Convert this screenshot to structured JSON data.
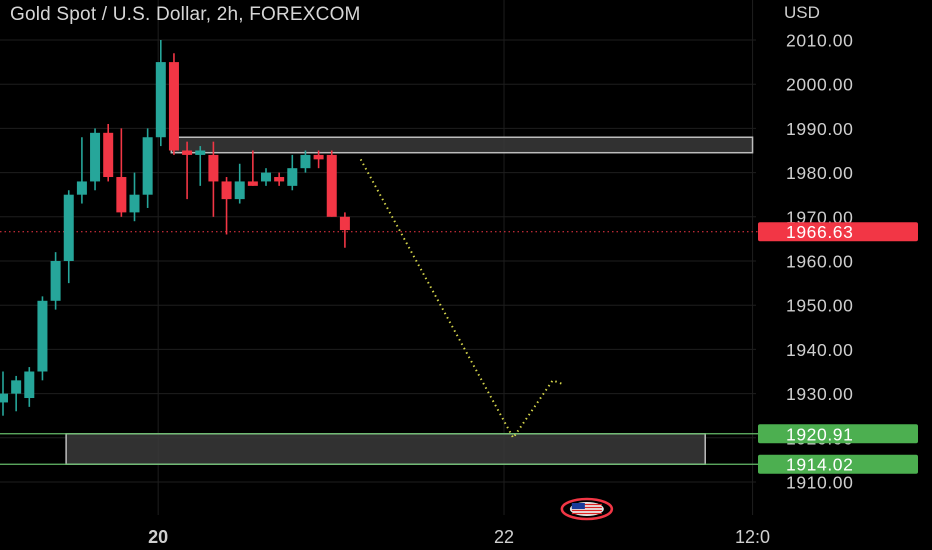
{
  "header": {
    "title": "Gold Spot / U.S. Dollar, 2h, FOREXCOM",
    "currency": "USD"
  },
  "colors": {
    "up": "#26a69a",
    "down": "#f23645",
    "current_price_label": "#f23645",
    "level_label": "#4caf50",
    "level_line": "#66bb6a",
    "zone_fill": "#3a3a3a",
    "zone_stroke": "#bdbdbd",
    "projection": "#d4d44a",
    "grid": "#1e1e1e",
    "text": "#cfcfcf"
  },
  "chart_data": {
    "type": "candlestick",
    "title": "Gold Spot / U.S. Dollar, 2h, FOREXCOM",
    "ylabel": "USD",
    "ylim": [
      1904.0,
      2018.0
    ],
    "y_ticks": [
      1910,
      1920,
      1930,
      1940,
      1950,
      1960,
      1970,
      1980,
      1990,
      2000,
      2010
    ],
    "y_tick_labels": [
      "1910.00",
      "1920.00",
      "1930.00",
      "1940.00",
      "1950.00",
      "1960.00",
      "1970.00",
      "1980.00",
      "1990.00",
      "2000.00",
      "2010.00"
    ],
    "x_ticks": [
      {
        "label": "20",
        "bar": 11.8
      },
      {
        "label": "22",
        "bar": 38.1
      },
      {
        "label": "12:0",
        "bar": 57.0
      }
    ],
    "x_range": [
      -0.3,
      58.5
    ],
    "candles": [
      {
        "o": 1928,
        "h": 1935,
        "l": 1925,
        "c": 1930
      },
      {
        "o": 1930,
        "h": 1934,
        "l": 1926,
        "c": 1933
      },
      {
        "o": 1929,
        "h": 1936,
        "l": 1927,
        "c": 1935
      },
      {
        "o": 1935,
        "h": 1952,
        "l": 1933,
        "c": 1951
      },
      {
        "o": 1951,
        "h": 1962,
        "l": 1949,
        "c": 1960
      },
      {
        "o": 1960,
        "h": 1976,
        "l": 1955,
        "c": 1975
      },
      {
        "o": 1975,
        "h": 1988,
        "l": 1973,
        "c": 1978
      },
      {
        "o": 1978,
        "h": 1990,
        "l": 1976,
        "c": 1989
      },
      {
        "o": 1989,
        "h": 1991,
        "l": 1978,
        "c": 1979
      },
      {
        "o": 1979,
        "h": 1990,
        "l": 1970,
        "c": 1971
      },
      {
        "o": 1971,
        "h": 1980,
        "l": 1969,
        "c": 1975
      },
      {
        "o": 1975,
        "h": 1990,
        "l": 1972,
        "c": 1988
      },
      {
        "o": 1988,
        "h": 2010,
        "l": 1986,
        "c": 2005
      },
      {
        "o": 2005,
        "h": 2007,
        "l": 1984,
        "c": 1985
      },
      {
        "o": 1985,
        "h": 1987,
        "l": 1974,
        "c": 1984
      },
      {
        "o": 1984,
        "h": 1986,
        "l": 1977,
        "c": 1985
      },
      {
        "o": 1984,
        "h": 1987,
        "l": 1970,
        "c": 1978
      },
      {
        "o": 1978,
        "h": 1979,
        "l": 1966,
        "c": 1974
      },
      {
        "o": 1974,
        "h": 1982,
        "l": 1973,
        "c": 1978
      },
      {
        "o": 1978,
        "h": 1985,
        "l": 1977,
        "c": 1977
      },
      {
        "o": 1978,
        "h": 1981,
        "l": 1977,
        "c": 1980
      },
      {
        "o": 1979,
        "h": 1980,
        "l": 1977,
        "c": 1978
      },
      {
        "o": 1977,
        "h": 1984,
        "l": 1976,
        "c": 1981
      },
      {
        "o": 1981,
        "h": 1985,
        "l": 1980,
        "c": 1984
      },
      {
        "o": 1984,
        "h": 1985,
        "l": 1981,
        "c": 1983
      },
      {
        "o": 1984,
        "h": 1985,
        "l": 1970,
        "c": 1970
      },
      {
        "o": 1970,
        "h": 1971,
        "l": 1963,
        "c": 1967
      }
    ],
    "current_price": {
      "value": 1966.63,
      "label": "1966.63"
    },
    "levels": [
      {
        "value": 1920.91,
        "label": "1920.91"
      },
      {
        "value": 1914.02,
        "label": "1914.02"
      }
    ],
    "zones": [
      {
        "name": "resistance-zone",
        "bar_start": 12.8,
        "bar_end": 57.0,
        "y_low": 1984.5,
        "y_high": 1988.0
      },
      {
        "name": "support-zone",
        "bar_start": 4.8,
        "bar_end": 53.4,
        "y_low": 1914.02,
        "y_high": 1920.91
      }
    ],
    "projection": [
      {
        "bar": 27.2,
        "y": 1983
      },
      {
        "bar": 38.8,
        "y": 1920
      },
      {
        "bar": 41.8,
        "y": 1933
      },
      {
        "bar": 42.7,
        "y": 1932
      }
    ],
    "flag_marker": {
      "bar": 44.4
    }
  }
}
